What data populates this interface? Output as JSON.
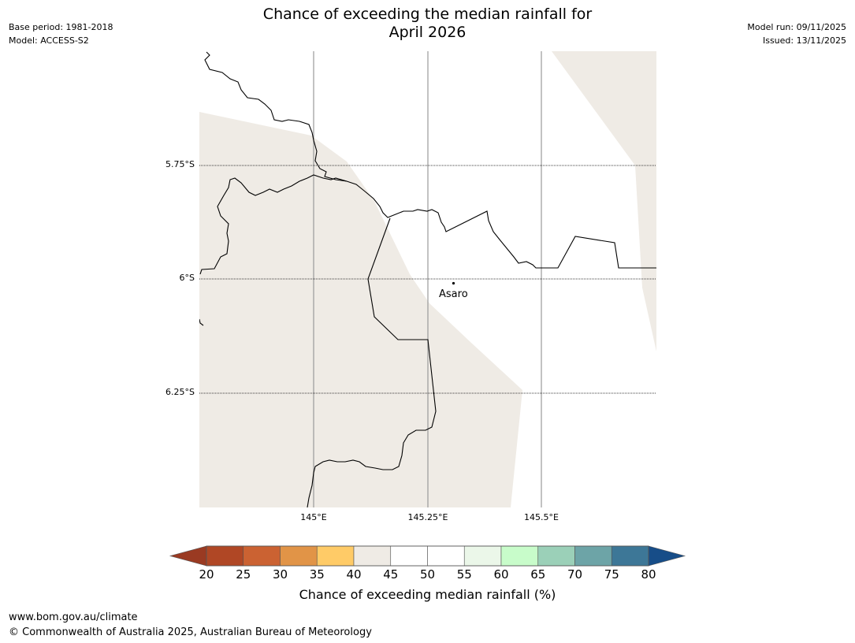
{
  "header": {
    "title_line1": "Chance of exceeding the median rainfall for",
    "title_line2": "April 2026",
    "base_period": "Base period: 1981-2018",
    "model": "Model: ACCESS-S2",
    "model_run": "Model run: 09/11/2025",
    "issued": "Issued: 13/11/2025"
  },
  "map": {
    "latitude_labels": [
      "5.75°S",
      "6°S",
      "6.25°S"
    ],
    "longitude_labels": [
      "145°E",
      "145.25°E",
      "145.5°E"
    ],
    "place": {
      "name": "Asaro",
      "lat": -6.01,
      "lon": 145.3
    },
    "shading_class": "40-45",
    "shading_color": "#efebe5"
  },
  "colorbar": {
    "caption": "Chance of exceeding median rainfall (%)",
    "ticks": [
      "20",
      "25",
      "30",
      "35",
      "40",
      "45",
      "50",
      "55",
      "60",
      "65",
      "70",
      "75",
      "80"
    ],
    "under_color": "#9a3a22",
    "over_color": "#174d88",
    "colors": [
      "#b04725",
      "#cb6232",
      "#e19447",
      "#ffcb67",
      "#efebe5",
      "#ffffff",
      "#ffffff",
      "#ebf7e9",
      "#c8fcca",
      "#9bd0b8",
      "#6da4a7",
      "#3d7797"
    ]
  },
  "footer": {
    "url": "www.bom.gov.au/climate",
    "copyright": "© Commonwealth of Australia 2025, Australian Bureau of Meteorology"
  }
}
